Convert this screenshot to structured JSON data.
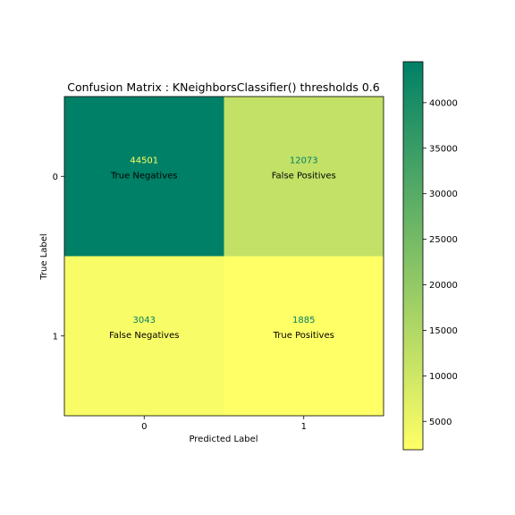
{
  "chart_data": {
    "type": "heatmap",
    "title": "Confusion Matrix : KNeighborsClassifier() thresholds 0.6",
    "xlabel": "Predicted Label",
    "ylabel": "True Label",
    "x_categories": [
      "0",
      "1"
    ],
    "y_categories": [
      "0",
      "1"
    ],
    "cells": [
      {
        "row": "0",
        "col": "0",
        "value": 44501,
        "label": "True Negatives"
      },
      {
        "row": "0",
        "col": "1",
        "value": 12073,
        "label": "False Positives"
      },
      {
        "row": "1",
        "col": "0",
        "value": 3043,
        "label": "False Negatives"
      },
      {
        "row": "1",
        "col": "1",
        "value": 1885,
        "label": "True Positives"
      }
    ],
    "colormap": "summer_r",
    "colorbar": {
      "range": [
        1885,
        44501
      ],
      "ticks": [
        5000,
        10000,
        15000,
        20000,
        25000,
        30000,
        35000,
        40000
      ]
    },
    "value_text_colors": {
      "dark_cell": "#ffff66",
      "light_cell": "#008066"
    },
    "label_text_color": "#000000"
  }
}
